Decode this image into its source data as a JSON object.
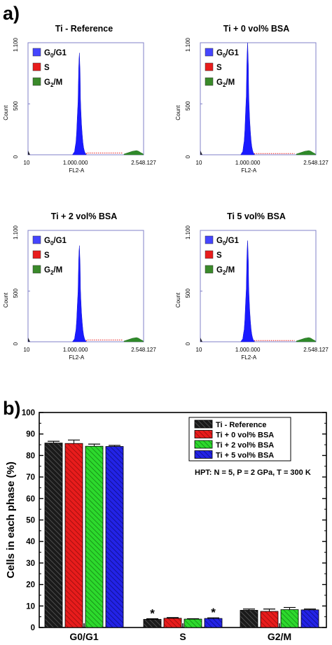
{
  "panel_a": {
    "label": "a)",
    "histograms": [
      {
        "title": "Ti - Reference",
        "y_ticks": [
          "1.100",
          "500",
          "0"
        ],
        "x_ticks": [
          "10",
          "1.000.000",
          "2.548.127"
        ],
        "ymax": 1100,
        "peak": 1000
      },
      {
        "title": "Ti + 0 vol% BSA",
        "y_ticks": [
          "1.100",
          "500",
          "0"
        ],
        "x_ticks": [
          "10",
          "1.000.000",
          "2.548.127"
        ],
        "ymax": 1100,
        "peak": 1100
      },
      {
        "title": "Ti + 2 vol% BSA",
        "y_ticks": [
          "1.100",
          "500",
          "0"
        ],
        "x_ticks": [
          "10",
          "1.000.000",
          "2.548.127"
        ],
        "ymax": 1100,
        "peak": 950
      },
      {
        "title": "Ti 5 vol% BSA",
        "y_ticks": [
          "1.100",
          "500",
          "0"
        ],
        "x_ticks": [
          "10",
          "1.000.000",
          "2.548.127"
        ],
        "ymax": 1100,
        "peak": 1000
      }
    ],
    "xlabel": "FL2-A",
    "ylabel": "Count",
    "legend": [
      {
        "main": "G",
        "sub": "0",
        "tail": "/G1",
        "color": "#4545ff"
      },
      {
        "main": "S",
        "sub": "",
        "tail": "",
        "color": "#e81c1c"
      },
      {
        "main": "G",
        "sub": "2",
        "tail": "/M",
        "color": "#3a8a2a"
      }
    ]
  },
  "panel_b": {
    "label": "b)"
  },
  "chart_data": [
    {
      "type": "area",
      "title": "Ti - Reference",
      "xlabel": "FL2-A",
      "ylabel": "Count",
      "xlim": [
        10,
        2548127
      ],
      "ylim": [
        0,
        1100
      ],
      "series": [
        {
          "name": "G0/G1",
          "peak_x": 1070000,
          "peak_count": 1000
        }
      ]
    },
    {
      "type": "area",
      "title": "Ti + 0 vol% BSA",
      "xlabel": "FL2-A",
      "ylabel": "Count",
      "xlim": [
        10,
        2548127
      ],
      "ylim": [
        0,
        1100
      ],
      "series": [
        {
          "name": "G0/G1",
          "peak_x": 1010000,
          "peak_count": 1100
        }
      ]
    },
    {
      "type": "area",
      "title": "Ti + 2 vol% BSA",
      "xlabel": "FL2-A",
      "ylabel": "Count",
      "xlim": [
        10,
        2548127
      ],
      "ylim": [
        0,
        1100
      ],
      "series": [
        {
          "name": "G0/G1",
          "peak_x": 1070000,
          "peak_count": 950
        }
      ]
    },
    {
      "type": "area",
      "title": "Ti 5 vol% BSA",
      "xlabel": "FL2-A",
      "ylabel": "Count",
      "xlim": [
        10,
        2548127
      ],
      "ylim": [
        0,
        1100
      ],
      "series": [
        {
          "name": "G0/G1",
          "peak_x": 1010000,
          "peak_count": 1000
        }
      ]
    },
    {
      "type": "bar",
      "categories": [
        "G0/G1",
        "S",
        "G2/M"
      ],
      "ylabel": "Cells in each phase (%)",
      "xlabel": "",
      "ylim": [
        0,
        100
      ],
      "yticks": [
        "0",
        "10",
        "20",
        "30",
        "40",
        "50",
        "60",
        "70",
        "80",
        "90",
        "100"
      ],
      "note": "HPT: N = 5, P = 2 GPa, T = 300 K",
      "legend_position": "top-right",
      "significance_marker": "*",
      "significant": [
        {
          "category": "S",
          "series": "Ti - Reference"
        },
        {
          "category": "S",
          "series": "Ti + 5 vol% BSA"
        }
      ],
      "series": [
        {
          "name": "Ti - Reference",
          "color": "#1a1a1a",
          "values": [
            85.8,
            3.8,
            8.0
          ],
          "errors": [
            0.8,
            0.3,
            0.6
          ]
        },
        {
          "name": "Ti + 0 vol% BSA",
          "color": "#e81c1c",
          "values": [
            85.6,
            4.3,
            7.5
          ],
          "errors": [
            1.6,
            0.3,
            1.1
          ]
        },
        {
          "name": "Ti + 2 vol% BSA",
          "color": "#2dd92d",
          "values": [
            84.3,
            3.9,
            8.3
          ],
          "errors": [
            1.0,
            0.2,
            1.0
          ]
        },
        {
          "name": "Ti + 5 vol% BSA",
          "color": "#2323e6",
          "values": [
            84.2,
            4.2,
            8.2
          ],
          "errors": [
            0.5,
            0.3,
            0.4
          ]
        }
      ]
    }
  ]
}
